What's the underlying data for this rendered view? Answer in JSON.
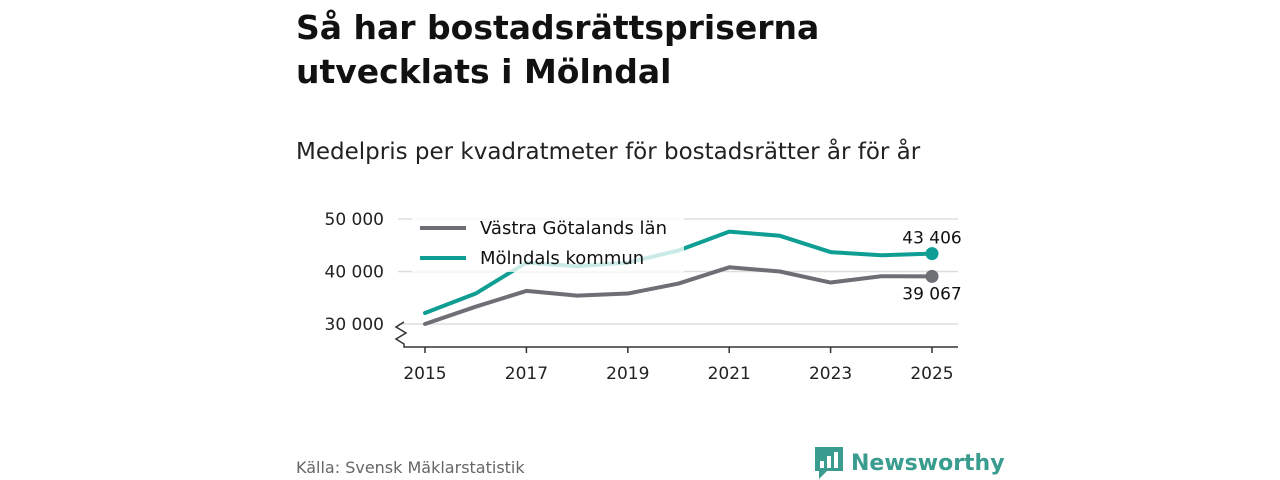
{
  "header": {
    "title": "Så har bostadsrättspriserna utvecklats i Mölndal",
    "subtitle": "Medelpris per kvadratmeter för bostadsrätter år för år"
  },
  "footer": {
    "source": "Källa: Svensk Mäklarstatistik",
    "brand": "Newsworthy"
  },
  "colors": {
    "vastra": "#6e6e75",
    "molndal": "#0f9e93",
    "grid": "#dddddd",
    "axis": "#333333",
    "brand": "#3a9c8f"
  },
  "chart_data": {
    "type": "line",
    "title": "Medelpris per kvadratmeter för bostadsrätter år för år",
    "xlabel": "",
    "ylabel": "",
    "x": [
      2015,
      2016,
      2017,
      2018,
      2019,
      2020,
      2021,
      2022,
      2023,
      2024,
      2025
    ],
    "xticks": [
      2015,
      2017,
      2019,
      2021,
      2023,
      2025
    ],
    "ylim": [
      30000,
      50000
    ],
    "yticks": [
      30000,
      40000,
      50000
    ],
    "ytick_labels": [
      "30 000",
      "40 000",
      "50 000"
    ],
    "legend_position": "top-left",
    "grid": true,
    "series": [
      {
        "name": "Västra Götalands län",
        "key": "vastra",
        "values": [
          30000,
          33300,
          36300,
          35400,
          35800,
          37700,
          40800,
          40000,
          37900,
          39100,
          39067
        ],
        "end_label": "39 067"
      },
      {
        "name": "Mölndals kommun",
        "key": "molndal",
        "values": [
          32100,
          35800,
          41700,
          41000,
          41700,
          44000,
          47600,
          46800,
          43700,
          43100,
          43406
        ],
        "end_label": "43 406"
      }
    ]
  }
}
